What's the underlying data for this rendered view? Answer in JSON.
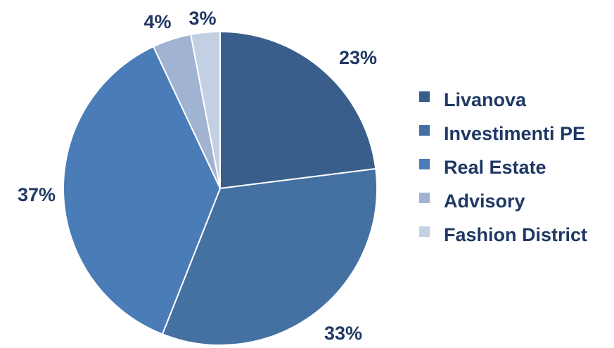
{
  "chart_data": {
    "type": "pie",
    "title": "",
    "start_angle_deg": 0,
    "direction": "clockwise",
    "legend_position": "right",
    "slices": [
      {
        "name": "Livanova",
        "value": 23,
        "label": "23%",
        "color": "#3a5e8c"
      },
      {
        "name": "Investimenti PE",
        "value": 33,
        "label": "33%",
        "color": "#4470a2"
      },
      {
        "name": "Real Estate",
        "value": 37,
        "label": "37%",
        "color": "#4a7cb8"
      },
      {
        "name": "Advisory",
        "value": 4,
        "label": "4%",
        "color": "#a0b3d2"
      },
      {
        "name": "Fashion District",
        "value": 3,
        "label": "3%",
        "color": "#c3cfe3"
      }
    ]
  }
}
